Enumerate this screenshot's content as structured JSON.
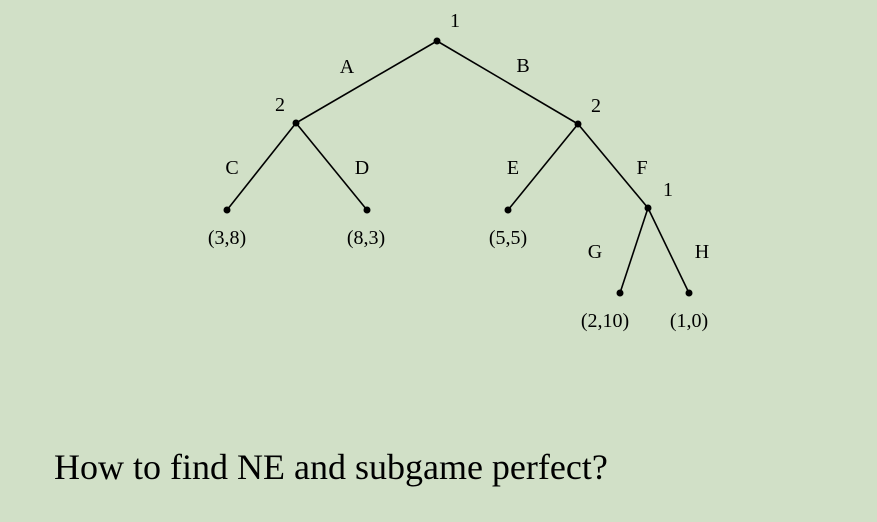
{
  "tree": {
    "nodes": [
      {
        "id": "root",
        "player": "1"
      },
      {
        "id": "n2L",
        "player": "2"
      },
      {
        "id": "n2R",
        "player": "2"
      },
      {
        "id": "n1F",
        "player": "1"
      },
      {
        "id": "tC",
        "payoff": "(3,8)"
      },
      {
        "id": "tD",
        "payoff": "(8,3)"
      },
      {
        "id": "tE",
        "payoff": "(5,5)"
      },
      {
        "id": "tG",
        "payoff": "(2,10)"
      },
      {
        "id": "tH",
        "payoff": "(1,0)"
      }
    ],
    "edges": [
      {
        "from": "root",
        "to": "n2L",
        "label": "A"
      },
      {
        "from": "root",
        "to": "n2R",
        "label": "B"
      },
      {
        "from": "n2L",
        "to": "tC",
        "label": "C"
      },
      {
        "from": "n2L",
        "to": "tD",
        "label": "D"
      },
      {
        "from": "n2R",
        "to": "tE",
        "label": "E"
      },
      {
        "from": "n2R",
        "to": "n1F",
        "label": "F"
      },
      {
        "from": "n1F",
        "to": "tG",
        "label": "G"
      },
      {
        "from": "n1F",
        "to": "tH",
        "label": "H"
      }
    ]
  },
  "question": "How to find NE and subgame perfect?"
}
